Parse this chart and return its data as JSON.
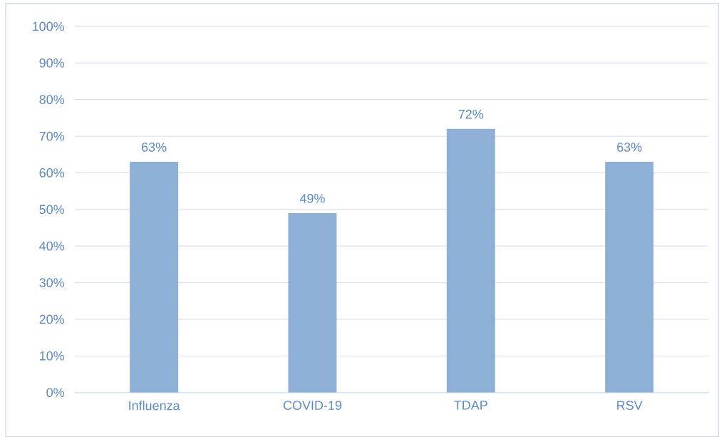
{
  "chart_data": {
    "type": "bar",
    "categories": [
      "Influenza",
      "COVID-19",
      "TDAP",
      "RSV"
    ],
    "values": [
      63,
      49,
      72,
      63
    ],
    "value_labels": [
      "63%",
      "49%",
      "72%",
      "63%"
    ],
    "color": "#8fb0d6",
    "ylim": [
      0,
      100
    ],
    "yticks": [
      {
        "value": 0,
        "label": "0%"
      },
      {
        "value": 10,
        "label": "10%"
      },
      {
        "value": 20,
        "label": "20%"
      },
      {
        "value": 30,
        "label": "30%"
      },
      {
        "value": 40,
        "label": "40%"
      },
      {
        "value": 50,
        "label": "50%"
      },
      {
        "value": 60,
        "label": "60%"
      },
      {
        "value": 70,
        "label": "70%"
      },
      {
        "value": 80,
        "label": "80%"
      },
      {
        "value": 90,
        "label": "90%"
      },
      {
        "value": 100,
        "label": "100%"
      }
    ],
    "grid": "y"
  }
}
